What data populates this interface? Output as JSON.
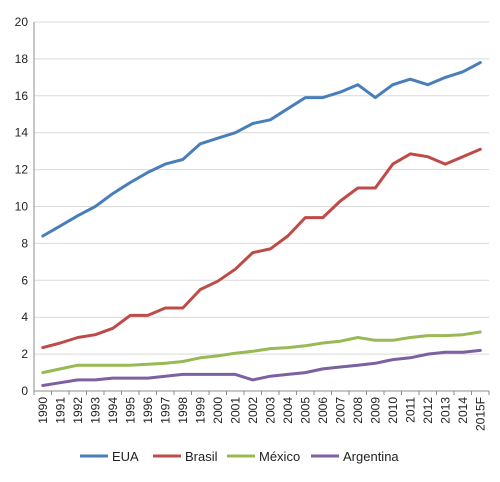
{
  "chart_data": {
    "type": "line",
    "title": "",
    "xlabel": "",
    "ylabel": "",
    "ylim": [
      0,
      20
    ],
    "y_ticks": [
      "0",
      "2",
      "4",
      "6",
      "8",
      "10",
      "12",
      "14",
      "16",
      "18",
      "20"
    ],
    "categories": [
      "1990",
      "1991",
      "1992",
      "1993",
      "1994",
      "1995",
      "1996",
      "1997",
      "1998",
      "1999",
      "2000",
      "2001",
      "2002",
      "2003",
      "2004",
      "2005",
      "2006",
      "2007",
      "2008",
      "2009",
      "2010",
      "2011",
      "2012",
      "2013",
      "2014",
      "2015F"
    ],
    "grid": true,
    "legend_position": "bottom",
    "series": [
      {
        "name": "EUA",
        "color": "#4a7ebb",
        "values": [
          8.4,
          8.95,
          9.5,
          10.0,
          10.7,
          11.3,
          11.85,
          12.3,
          12.55,
          13.4,
          13.7,
          14.0,
          14.5,
          14.7,
          15.3,
          15.9,
          15.9,
          16.2,
          16.6,
          15.9,
          16.6,
          16.9,
          16.6,
          17.0,
          17.3,
          17.8
        ]
      },
      {
        "name": "Brasil",
        "color": "#be4b48",
        "values": [
          2.35,
          2.6,
          2.9,
          3.05,
          3.4,
          4.1,
          4.1,
          4.5,
          4.5,
          5.5,
          5.95,
          6.6,
          7.5,
          7.7,
          8.4,
          9.4,
          9.4,
          10.3,
          11.0,
          11.0,
          12.3,
          12.85,
          12.7,
          12.3,
          12.7,
          13.1
        ]
      },
      {
        "name": "México",
        "color": "#98b954",
        "values": [
          1.0,
          1.2,
          1.4,
          1.4,
          1.4,
          1.4,
          1.45,
          1.5,
          1.6,
          1.8,
          1.9,
          2.05,
          2.15,
          2.3,
          2.35,
          2.45,
          2.6,
          2.7,
          2.9,
          2.75,
          2.75,
          2.9,
          3.0,
          3.0,
          3.05,
          3.2
        ]
      },
      {
        "name": "Argentina",
        "color": "#7d60a0",
        "values": [
          0.3,
          0.45,
          0.6,
          0.6,
          0.7,
          0.7,
          0.7,
          0.8,
          0.9,
          0.9,
          0.9,
          0.9,
          0.6,
          0.8,
          0.9,
          1.0,
          1.2,
          1.3,
          1.4,
          1.5,
          1.7,
          1.8,
          2.0,
          2.1,
          2.1,
          2.2
        ]
      }
    ]
  }
}
